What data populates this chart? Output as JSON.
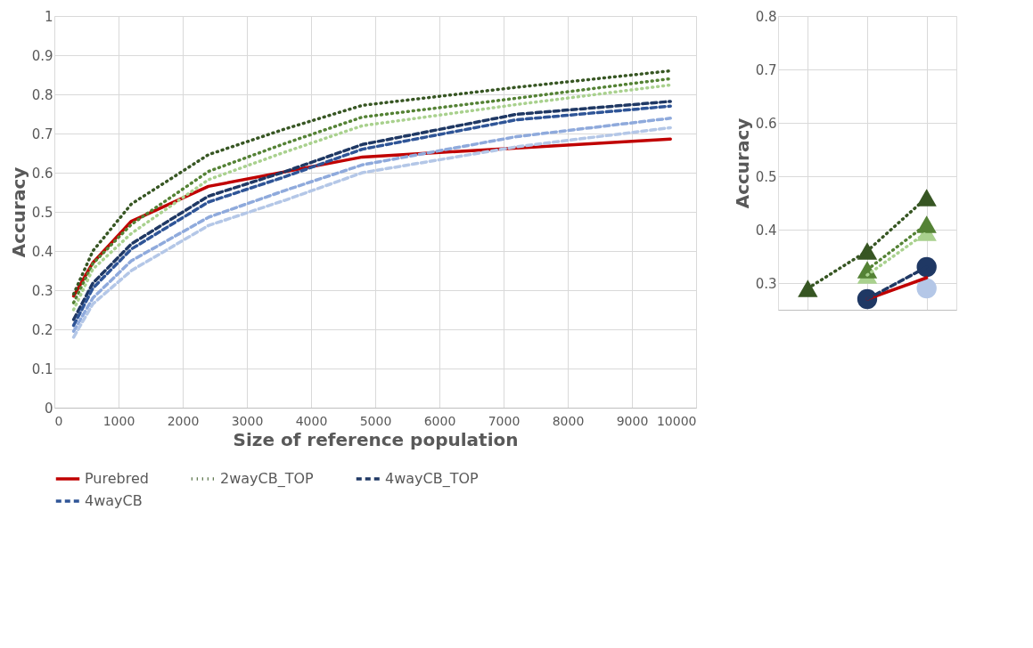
{
  "chart_data": [
    {
      "type": "line",
      "xlabel": "Size of reference population",
      "ylabel": "Accuracy",
      "x": [
        300,
        600,
        1200,
        2400,
        3600,
        4800,
        7200,
        9600
      ],
      "xlim": [
        0,
        10000
      ],
      "xticks": [
        0,
        1000,
        2000,
        3000,
        4000,
        5000,
        6000,
        7000,
        8000,
        9000,
        10000
      ],
      "ylim": [
        0,
        1
      ],
      "yticks": [
        0,
        0.1,
        0.2,
        0.3,
        0.4,
        0.5,
        0.6,
        0.7,
        0.8,
        0.9,
        1
      ],
      "grid": true,
      "legend": "bottom",
      "series": [
        {
          "name": "Purebred",
          "color": "#c00000",
          "line_style": "solid",
          "x": [
            300,
            600,
            1200,
            2400,
            4800,
            9600
          ],
          "values": [
            0.285,
            0.37,
            0.476,
            0.565,
            0.64,
            0.686
          ]
        },
        {
          "name": "2wayCB_TOP",
          "color": "#375623",
          "line_style": "dotted",
          "values": [
            0.29,
            0.4,
            0.52,
            0.646,
            0.712,
            0.772,
            0.818,
            0.86
          ]
        },
        {
          "color": "#548235",
          "line_style": "dotted",
          "values": [
            0.268,
            0.368,
            0.468,
            0.603,
            0.675,
            0.742,
            0.79,
            0.84
          ]
        },
        {
          "color": "#a9d18e",
          "line_style": "dotted",
          "values": [
            0.25,
            0.354,
            0.445,
            0.582,
            0.653,
            0.72,
            0.774,
            0.824
          ]
        },
        {
          "name": "4wayCB_TOP",
          "color": "#1f3864",
          "line_style": "dashed",
          "values": [
            0.225,
            0.318,
            0.418,
            0.54,
            0.603,
            0.672,
            0.749,
            0.782
          ]
        },
        {
          "name": "4wayCB",
          "color": "#2f5597",
          "line_style": "dashed",
          "values": [
            0.21,
            0.305,
            0.405,
            0.525,
            0.59,
            0.66,
            0.735,
            0.77
          ]
        },
        {
          "color": "#8faadc",
          "line_style": "dashed",
          "values": [
            0.195,
            0.28,
            0.375,
            0.486,
            0.555,
            0.62,
            0.692,
            0.739
          ]
        },
        {
          "color": "#b4c7e7",
          "line_style": "dashed",
          "values": [
            0.18,
            0.265,
            0.35,
            0.465,
            0.53,
            0.6,
            0.666,
            0.715
          ]
        }
      ]
    },
    {
      "type": "line",
      "ylabel": "Accuracy",
      "categories": [
        null,
        null,
        null
      ],
      "ylim": [
        0.25,
        0.8
      ],
      "yticks": [
        0.3,
        0.4,
        0.5,
        0.6,
        0.7,
        0.8
      ],
      "grid": true,
      "tick_labels": "y",
      "series": [
        {
          "color": "#c00000",
          "line_style": "solid",
          "marker": "none",
          "values": [
            null,
            0.27,
            0.31
          ]
        },
        {
          "color": "#375623",
          "line_style": "dotted",
          "marker": "triangle",
          "values": [
            0.29,
            0.36,
            0.46
          ]
        },
        {
          "color": "#548235",
          "line_style": "dotted",
          "marker": "triangle",
          "values": [
            null,
            0.325,
            0.41
          ]
        },
        {
          "color": "#a9d18e",
          "line_style": "dotted",
          "marker": "triangle",
          "values": [
            null,
            0.315,
            0.395
          ]
        },
        {
          "color": "#1f3864",
          "line_style": "dashed",
          "marker": "circle",
          "values": [
            null,
            0.27,
            0.33
          ]
        },
        {
          "color": "#2f5597",
          "line_style": "dashed",
          "marker": "circle",
          "values": [
            null,
            null,
            null
          ]
        },
        {
          "color": "#b4c7e7",
          "line_style": "dashed",
          "marker": "circle",
          "values": [
            null,
            null,
            0.29
          ]
        }
      ]
    }
  ]
}
